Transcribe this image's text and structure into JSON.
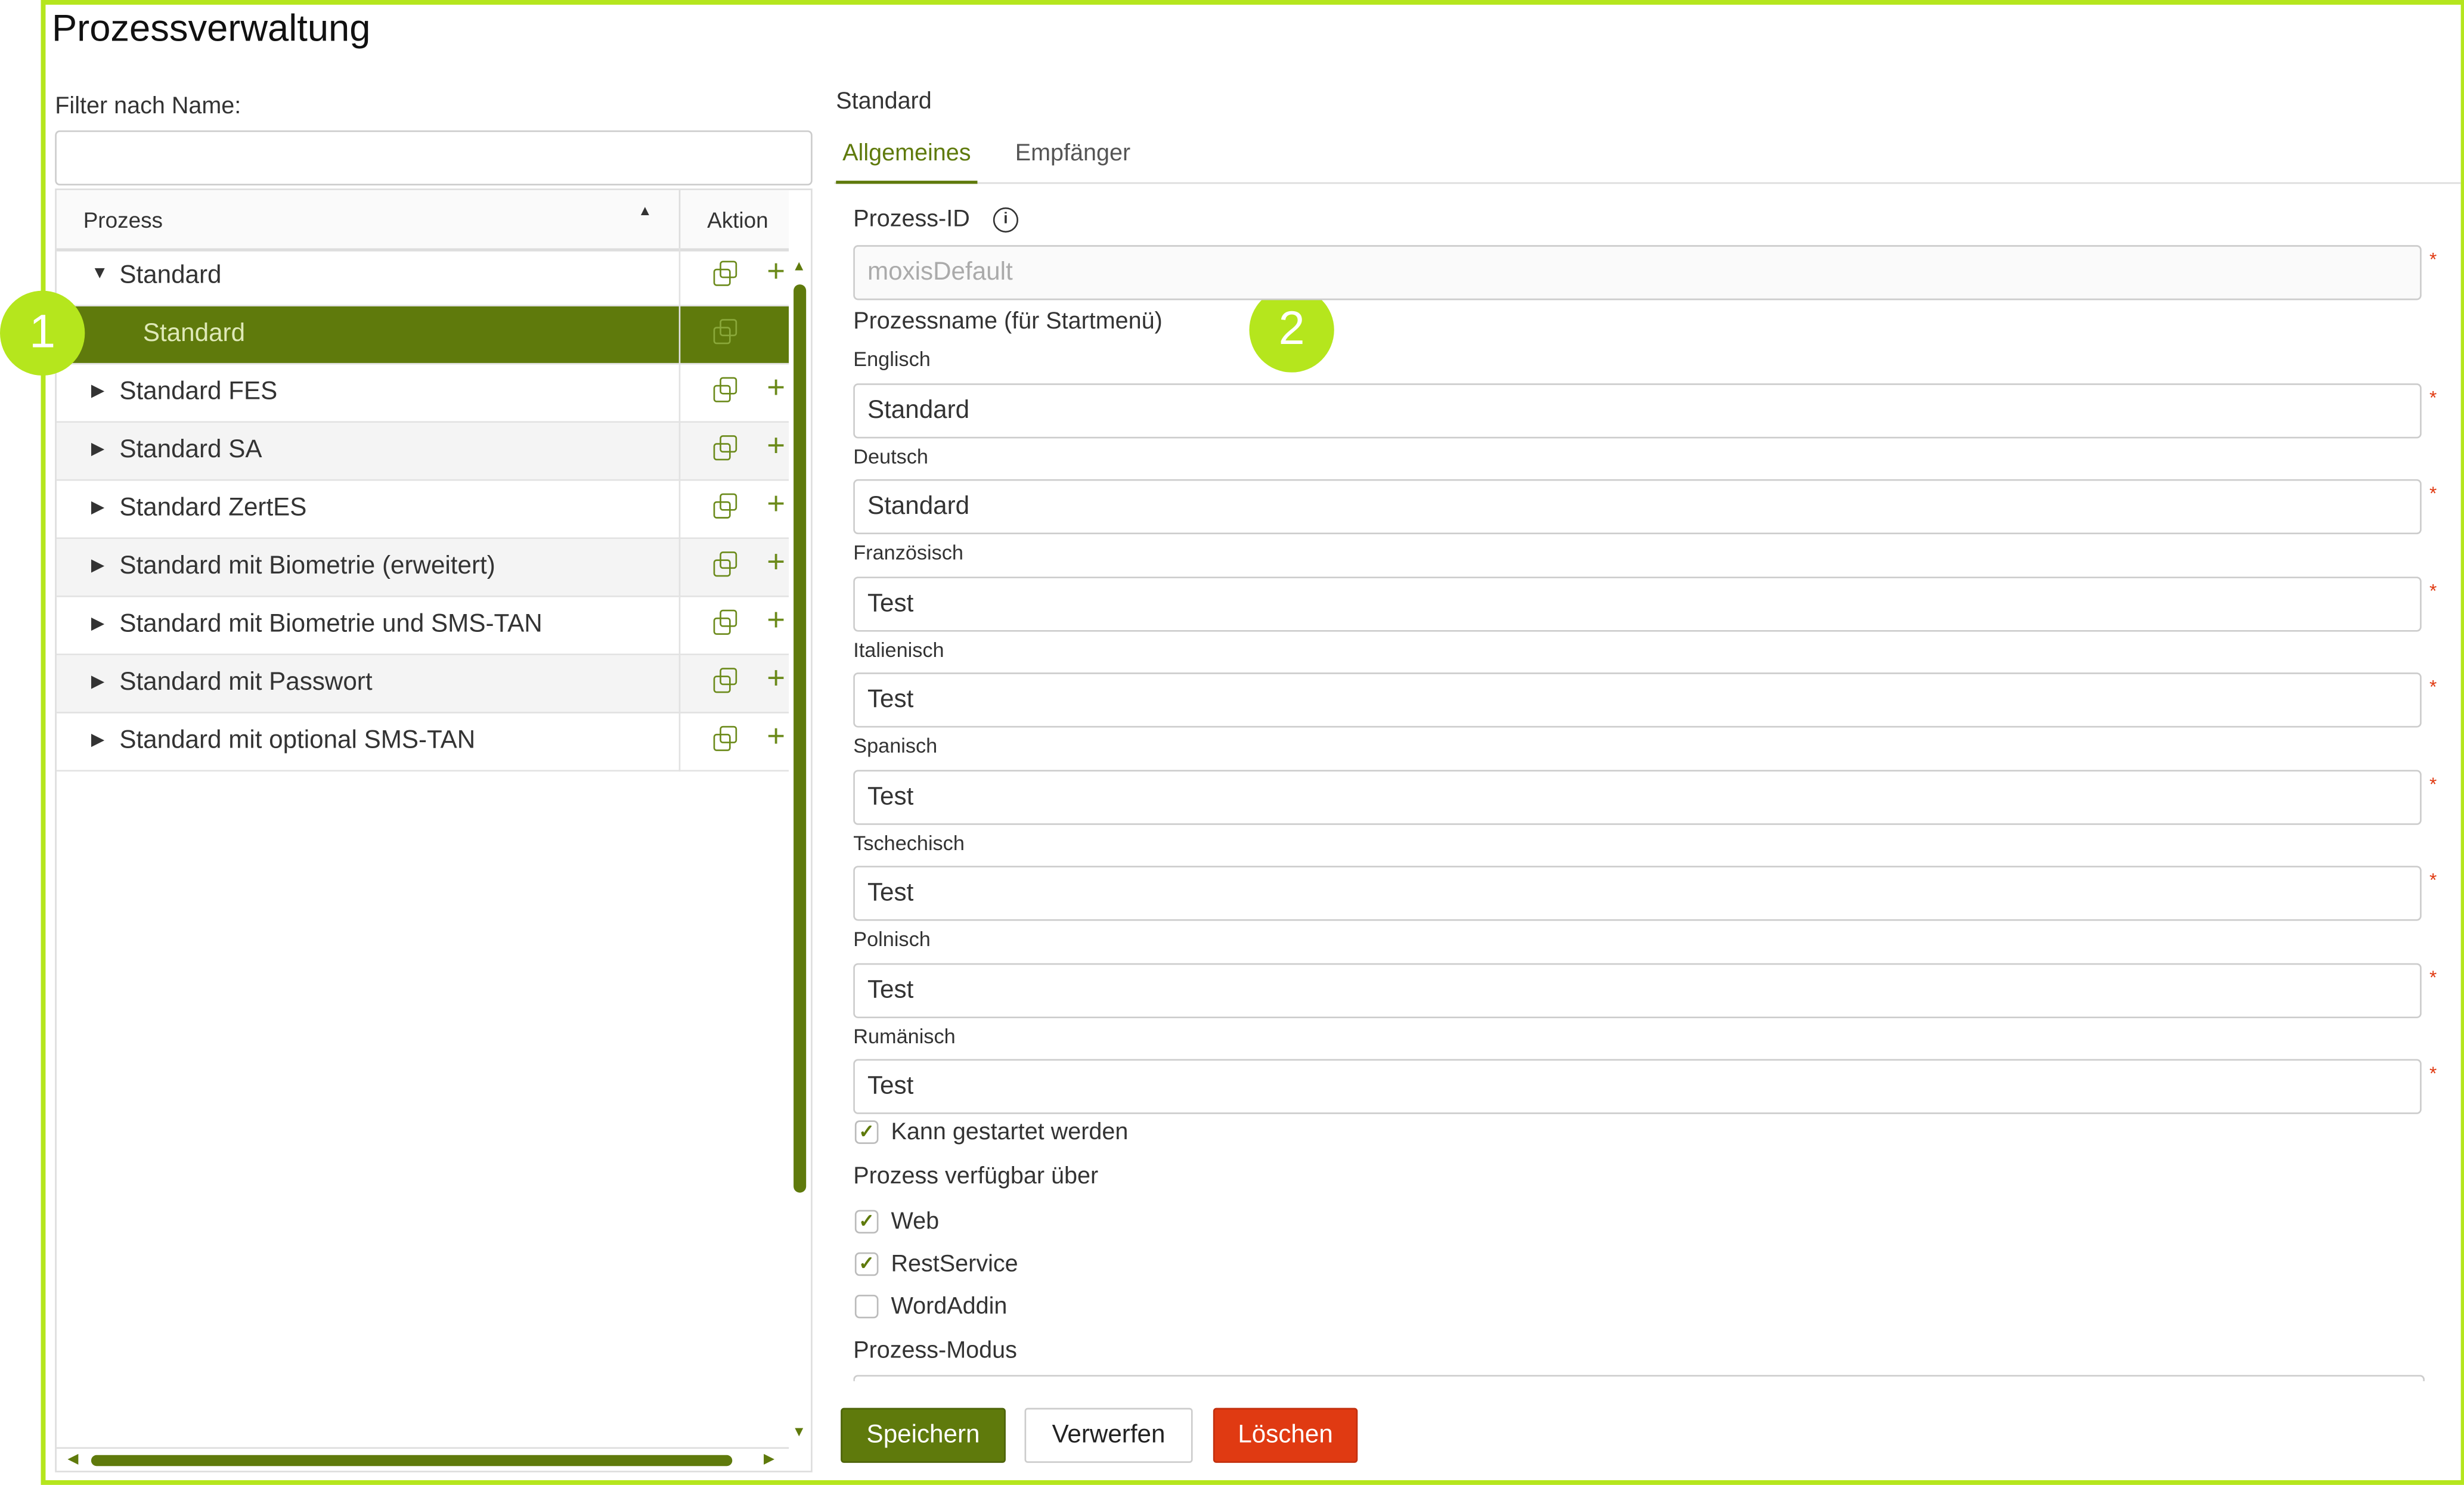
{
  "page_title": "Prozessverwaltung",
  "filter": {
    "label": "Filter nach Name:",
    "value": "",
    "placeholder": ""
  },
  "table": {
    "columns": [
      "Prozess",
      "Aktion"
    ],
    "sort_icon": "sort-ascending-icon",
    "rows": [
      {
        "name": "Standard",
        "expanded": true,
        "level": 0
      },
      {
        "name": "Standard",
        "selected": true,
        "level": 1
      },
      {
        "name": "Standard FES",
        "level": 0
      },
      {
        "name": "Standard SA",
        "level": 0
      },
      {
        "name": "Standard ZertES",
        "level": 0
      },
      {
        "name": "Standard mit Biometrie (erweitert)",
        "level": 0
      },
      {
        "name": "Standard mit Biometrie und SMS-TAN",
        "level": 0
      },
      {
        "name": "Standard mit Passwort",
        "level": 0
      },
      {
        "name": "Standard mit optional SMS-TAN",
        "level": 0
      }
    ]
  },
  "badges": [
    "1",
    "2"
  ],
  "detail": {
    "heading": "Standard",
    "tabs": [
      {
        "label": "Allgemeines",
        "active": true
      },
      {
        "label": "Empfänger",
        "active": false
      }
    ],
    "process_id": {
      "label": "Prozess-ID",
      "value": "moxisDefault",
      "required": "*"
    },
    "process_name_label": "Prozessname (für Startmenü)",
    "names": [
      {
        "label": "Englisch",
        "value": "Standard"
      },
      {
        "label": "Deutsch",
        "value": "Standard"
      },
      {
        "label": "Französisch",
        "value": "Test"
      },
      {
        "label": "Italienisch",
        "value": "Test"
      },
      {
        "label": "Spanisch",
        "value": "Test"
      },
      {
        "label": "Tschechisch",
        "value": "Test"
      },
      {
        "label": "Polnisch",
        "value": "Test"
      },
      {
        "label": "Rumänisch",
        "value": "Test"
      }
    ],
    "can_start": {
      "label": "Kann gestartet werden",
      "checked": true
    },
    "available_label": "Prozess verfügbar über",
    "available": [
      {
        "label": "Web",
        "checked": true
      },
      {
        "label": "RestService",
        "checked": true
      },
      {
        "label": "WordAddin",
        "checked": false
      }
    ],
    "mode_label": "Prozess-Modus"
  },
  "buttons": {
    "save": "Speichern",
    "discard": "Verwerfen",
    "delete": "Löschen"
  },
  "colors": {
    "accent": "#5f7a0c",
    "highlight": "#b5e61d",
    "danger": "#e03a12"
  }
}
